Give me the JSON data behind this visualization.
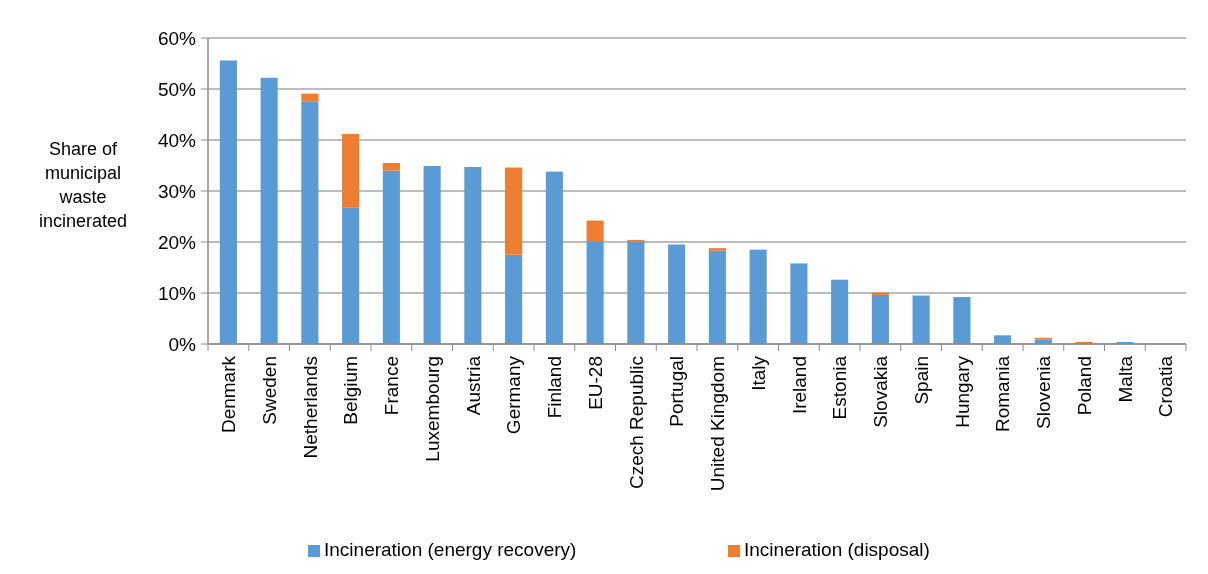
{
  "chart_data": {
    "type": "bar",
    "stacked": true,
    "ylabel": "Share of municipal waste incinerated",
    "categories": [
      "Denmark",
      "Sweden",
      "Netherlands",
      "Belgium",
      "France",
      "Luxembourg",
      "Austria",
      "Germany",
      "Finland",
      "EU-28",
      "Czech Republic",
      "Portugal",
      "United Kingdom",
      "Italy",
      "Ireland",
      "Estonia",
      "Slovakia",
      "Spain",
      "Hungary",
      "Romania",
      "Slovenia",
      "Poland",
      "Malta",
      "Croatia"
    ],
    "series": [
      {
        "name": "Incineration (energy recovery)",
        "color": "#5b9bd5",
        "values": [
          55.6,
          52.2,
          47.6,
          26.8,
          34.0,
          34.9,
          34.7,
          17.5,
          33.8,
          20.0,
          20.1,
          19.5,
          18.3,
          18.5,
          15.8,
          12.6,
          9.6,
          9.5,
          9.2,
          1.7,
          0.9,
          null,
          0.4,
          0
        ]
      },
      {
        "name": "Incineration (disposal)",
        "color": "#ed7d31",
        "values": [
          0,
          0,
          1.5,
          14.4,
          1.5,
          0,
          0,
          17.1,
          0,
          4.2,
          0.3,
          0,
          0.5,
          0,
          0,
          0,
          0.5,
          0,
          0,
          0,
          0.3,
          0.4,
          0,
          0
        ]
      }
    ],
    "ylim": [
      0,
      60
    ],
    "yticks": [
      {
        "value": 0,
        "label": "0%"
      },
      {
        "value": 10,
        "label": "10%"
      },
      {
        "value": 20,
        "label": "20%"
      },
      {
        "value": 30,
        "label": "30%"
      },
      {
        "value": 40,
        "label": "40%"
      },
      {
        "value": 50,
        "label": "50%"
      },
      {
        "value": 60,
        "label": "60%"
      }
    ],
    "grid": "y",
    "legend": "bottom"
  }
}
